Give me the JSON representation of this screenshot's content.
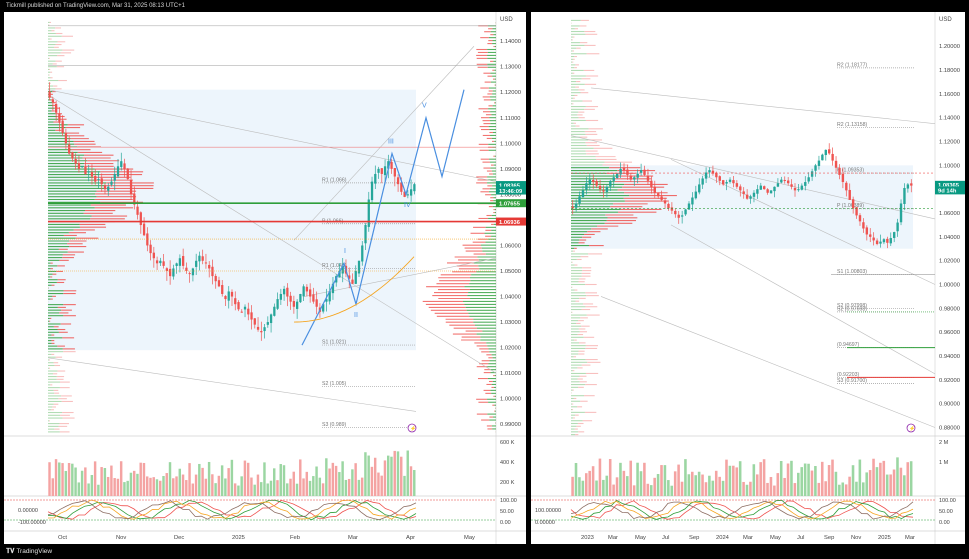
{
  "header": {
    "title": "Tickmill published on TradingView.com, Mar 31, 2025 08:13 UTC+1"
  },
  "footer": {
    "logo_text": "TradingView"
  },
  "colors": {
    "bull": "#26a69a",
    "bear": "#ef5350",
    "green_line": "#2e9e3a",
    "red_line": "#e53935",
    "wave": "#4a8fe0",
    "ma": "#f5a623"
  },
  "left_chart": {
    "currency": "USD",
    "price_axis": {
      "ticks": [
        "1.14000",
        "1.13000",
        "1.12000",
        "1.11000",
        "1.10000",
        "1.09000",
        "1.08000",
        "1.07000",
        "1.06000",
        "1.05000",
        "1.04000",
        "1.03000",
        "1.02000",
        "1.01000",
        "1.00000",
        "0.99000"
      ],
      "range": [
        0.985,
        1.1475
      ]
    },
    "time_axis": {
      "ticks": [
        "Oct",
        "Nov",
        "Dec",
        "2025",
        "Feb",
        "Mar",
        "Apr",
        "May"
      ]
    },
    "price_tags": [
      {
        "label": "1.08365",
        "value": 1.08365,
        "color": "#089981"
      },
      {
        "label": "13:46:09",
        "value": 1.0815,
        "color": "#089981"
      },
      {
        "label": "1.07655",
        "value": 1.07655,
        "color": "#2e9e3a"
      },
      {
        "label": "1.06936",
        "value": 1.06936,
        "color": "#e53935"
      }
    ],
    "pivots": [
      {
        "label": "R1 (1.066)",
        "value": 1.0845
      },
      {
        "label": "P (1.066)",
        "value": 1.0685
      },
      {
        "label": "R1 (1.049)",
        "value": 1.051
      },
      {
        "label": "S1 (1.021)",
        "value": 1.021
      },
      {
        "label": "S2 (1.005)",
        "value": 1.0048
      },
      {
        "label": "S3 (0.989)",
        "value": 0.9888
      }
    ],
    "wave_labels": [
      "I",
      "II",
      "III",
      "IV",
      "V"
    ],
    "indicator_badge": "⚡",
    "volume_axis": {
      "ticks": [
        "600 K",
        "400 K",
        "200 K"
      ]
    },
    "oscillator_axis": {
      "left_ticks": [
        "0.00000",
        "-100.00000"
      ],
      "right_ticks": [
        "100.00",
        "50.00",
        "0.00"
      ]
    }
  },
  "right_chart": {
    "currency": "USD",
    "price_axis": {
      "ticks": [
        "1.20000",
        "1.18000",
        "1.16000",
        "1.14000",
        "1.12000",
        "1.10000",
        "1.08000",
        "1.06000",
        "1.04000",
        "1.02000",
        "1.00000",
        "0.98000",
        "0.96000",
        "0.94000",
        "0.92000",
        "0.90000",
        "0.88000"
      ],
      "range": [
        0.872,
        1.222
      ]
    },
    "time_axis": {
      "ticks": [
        "2023",
        "Mar",
        "May",
        "Jul",
        "Sep",
        "2024",
        "Mar",
        "May",
        "Jul",
        "Sep",
        "Nov",
        "2025",
        "Mar"
      ]
    },
    "price_tags": [
      {
        "label": "1.08365",
        "value": 1.08365,
        "color": "#089981"
      },
      {
        "label": "9d 14h",
        "value": 1.079,
        "color": "#089981"
      }
    ],
    "pivots": [
      {
        "label": "R2 (1.18177)",
        "value": 1.1818
      },
      {
        "label": "R2 (1.13158)",
        "value": 1.1316
      },
      {
        "label": "P (1.09353)",
        "value": 1.0935
      },
      {
        "label": "P (1.06389)",
        "value": 1.0636
      },
      {
        "label": "S1 (1.00803)",
        "value": 1.0083
      },
      {
        "label": "S2 (0.97998)",
        "value": 0.98
      },
      {
        "label": "S2 (0.97698)",
        "value": 0.977
      },
      {
        "label": "(0.94697)",
        "value": 0.947
      },
      {
        "label": "(0.92203)",
        "value": 0.922
      },
      {
        "label": "S3 (0.91700)",
        "value": 0.917
      }
    ],
    "indicator_badge": "⚡",
    "volume_axis": {
      "ticks": [
        "2 M",
        "1 M"
      ]
    },
    "oscillator_axis": {
      "left_ticks": [
        "100.00000",
        "0.00000"
      ],
      "right_ticks": [
        "100.00",
        "50.00",
        "0.00"
      ]
    }
  },
  "chart_data": [
    {
      "type": "candlestick",
      "title": "",
      "series": [
        {
          "name": "",
          "close": [
            1.118,
            1.116,
            1.112,
            1.108,
            1.104,
            1.1,
            1.096,
            1.094,
            1.092,
            1.09,
            1.091,
            1.088,
            1.089,
            1.087,
            1.085,
            1.086,
            1.084,
            1.082,
            1.083,
            1.085,
            1.088,
            1.091,
            1.093,
            1.09,
            1.086,
            1.08,
            1.076,
            1.072,
            1.068,
            1.064,
            1.06,
            1.057,
            1.055,
            1.053,
            1.054,
            1.052,
            1.05,
            1.048,
            1.051,
            1.053,
            1.055,
            1.052,
            1.05,
            1.049,
            1.051,
            1.054,
            1.056,
            1.054,
            1.053,
            1.051,
            1.048,
            1.046,
            1.044,
            1.041,
            1.039,
            1.042,
            1.04,
            1.037,
            1.035,
            1.034,
            1.036,
            1.033,
            1.031,
            1.029,
            1.027,
            1.026,
            1.028,
            1.03,
            1.033,
            1.036,
            1.039,
            1.041,
            1.043,
            1.04,
            1.038,
            1.036,
            1.038,
            1.041,
            1.044,
            1.042,
            1.04,
            1.038,
            1.036,
            1.034,
            1.037,
            1.039,
            1.042,
            1.045,
            1.048,
            1.05,
            1.052,
            1.049,
            1.047,
            1.045,
            1.05,
            1.054,
            1.06,
            1.068,
            1.078,
            1.085,
            1.088,
            1.09,
            1.088,
            1.091,
            1.093,
            1.09,
            1.087,
            1.084,
            1.081,
            1.079,
            1.08,
            1.082,
            1.084
          ]
        }
      ],
      "ylim": [
        0.985,
        1.1475
      ]
    },
    {
      "type": "candlestick",
      "title": "",
      "series": [
        {
          "name": "",
          "close": [
            1.064,
            1.068,
            1.074,
            1.079,
            1.085,
            1.088,
            1.086,
            1.083,
            1.08,
            1.078,
            1.082,
            1.087,
            1.09,
            1.093,
            1.097,
            1.096,
            1.092,
            1.088,
            1.09,
            1.093,
            1.096,
            1.092,
            1.087,
            1.082,
            1.077,
            1.074,
            1.071,
            1.068,
            1.064,
            1.062,
            1.059,
            1.056,
            1.058,
            1.063,
            1.068,
            1.073,
            1.078,
            1.084,
            1.089,
            1.094,
            1.096,
            1.093,
            1.09,
            1.087,
            1.084,
            1.086,
            1.088,
            1.085,
            1.082,
            1.079,
            1.076,
            1.072,
            1.074,
            1.077,
            1.08,
            1.083,
            1.08,
            1.077,
            1.079,
            1.082,
            1.085,
            1.088,
            1.087,
            1.085,
            1.082,
            1.079,
            1.08,
            1.083,
            1.086,
            1.09,
            1.095,
            1.1,
            1.104,
            1.109,
            1.113,
            1.11,
            1.104,
            1.098,
            1.092,
            1.086,
            1.079,
            1.071,
            1.064,
            1.058,
            1.053,
            1.047,
            1.042,
            1.04,
            1.037,
            1.034,
            1.036,
            1.038,
            1.035,
            1.039,
            1.044,
            1.052,
            1.068,
            1.081,
            1.084,
            1.083
          ]
        }
      ],
      "ylim": [
        0.872,
        1.222
      ]
    }
  ]
}
